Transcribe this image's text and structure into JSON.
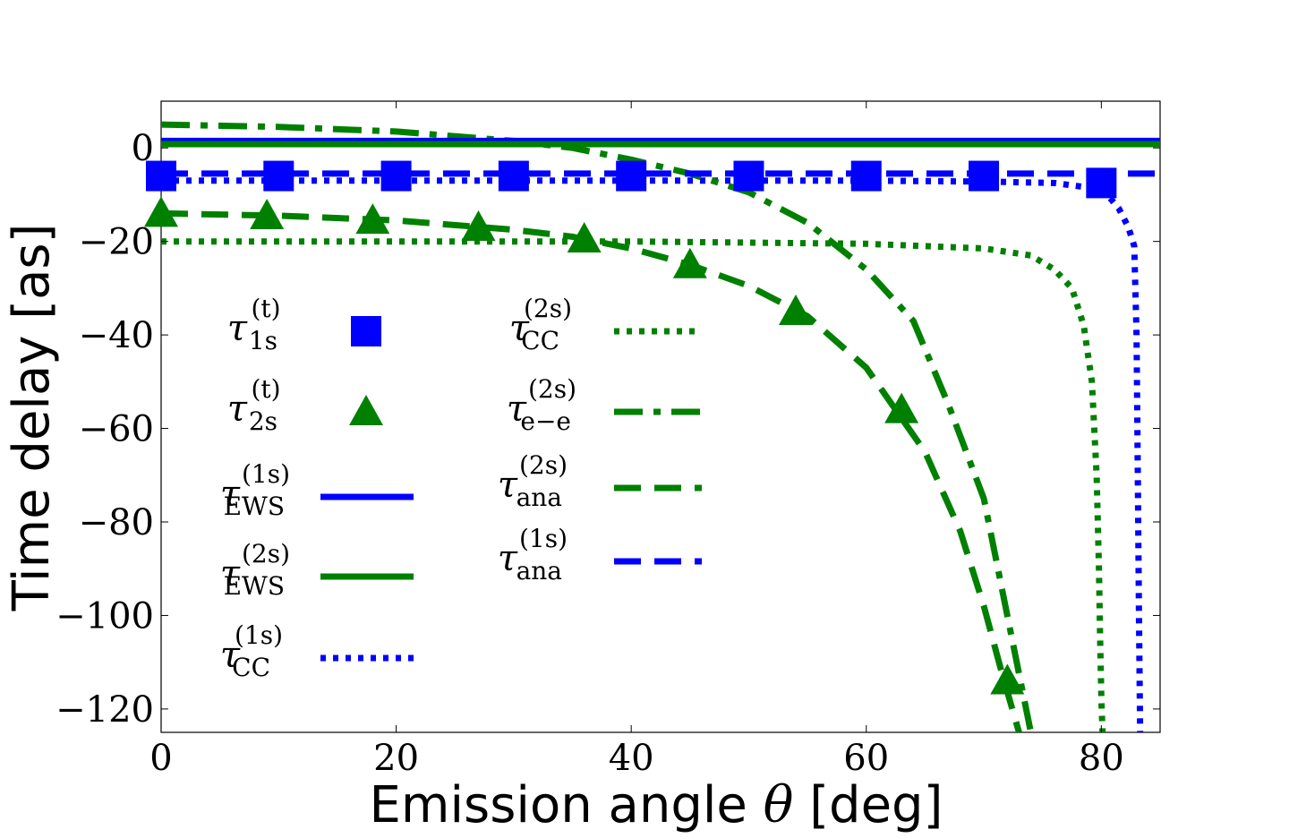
{
  "chart_data": {
    "type": "line",
    "xlabel": "Emission angle θ [deg]",
    "xlabel_parts": {
      "before": "Emission angle ",
      "symbol": "θ",
      "after": " [deg]"
    },
    "ylabel": "Time delay [as]",
    "xlim": [
      0,
      85
    ],
    "ylim": [
      -125,
      10
    ],
    "xticks": [
      0,
      20,
      40,
      60,
      80
    ],
    "xtick_labels": [
      "0",
      "20",
      "40",
      "60",
      "80"
    ],
    "yticks": [
      0,
      -20,
      -40,
      -60,
      -80,
      -100,
      -120
    ],
    "ytick_labels": [
      "0",
      "−20",
      "−40",
      "−60",
      "−80",
      "−100",
      "−120"
    ],
    "grid": false,
    "legend_position": "inside-left",
    "series": [
      {
        "name": "τ_1s^(t)",
        "legend_tau": "τ",
        "legend_sub": "1s",
        "legend_sup": "(t)",
        "style": "marker-square",
        "color": "#0000ff",
        "x": [
          0,
          10,
          20,
          30,
          40,
          50,
          60,
          70,
          80
        ],
        "y": [
          -6,
          -6,
          -6,
          -6,
          -6,
          -6,
          -6,
          -6,
          -7.5
        ]
      },
      {
        "name": "τ_2s^(t)",
        "legend_tau": "τ",
        "legend_sub": "2s",
        "legend_sup": "(t)",
        "style": "marker-triangle",
        "color": "#008000",
        "x": [
          0,
          9,
          18,
          27,
          36,
          45,
          54,
          63,
          72
        ],
        "y": [
          -14,
          -14.5,
          -15.5,
          -17,
          -19.5,
          -25,
          -35,
          -56,
          -114
        ]
      },
      {
        "name": "τ_EWS^(1s)",
        "legend_tau": "τ",
        "legend_sub": "EWS",
        "legend_sup": "(1s)",
        "style": "solid",
        "color": "#0000ff",
        "x": [
          0,
          85
        ],
        "y": [
          1.5,
          1.5
        ]
      },
      {
        "name": "τ_EWS^(2s)",
        "legend_tau": "τ",
        "legend_sub": "EWS",
        "legend_sup": "(2s)",
        "style": "solid",
        "color": "#008000",
        "x": [
          0,
          85
        ],
        "y": [
          0.8,
          0.8
        ]
      },
      {
        "name": "τ_CC^(1s)",
        "legend_tau": "τ",
        "legend_sub": "CC",
        "legend_sup": "(1s)",
        "style": "dotted",
        "color": "#0000ff",
        "x": [
          0,
          20,
          40,
          60,
          70,
          76,
          79,
          80.5,
          81.5,
          82.3,
          82.8,
          83,
          83.1,
          83.2,
          83.3
        ],
        "y": [
          -7,
          -7,
          -7,
          -7,
          -7.2,
          -7.5,
          -8.5,
          -10,
          -13,
          -17,
          -21,
          -40,
          -70,
          -100,
          -125
        ]
      },
      {
        "name": "τ_CC^(2s)",
        "legend_tau": "τ",
        "legend_sub": "CC",
        "legend_sup": "(2s)",
        "style": "dotted",
        "color": "#008000",
        "x": [
          0,
          20,
          40,
          60,
          70,
          74,
          76,
          77.5,
          78.5,
          79.2,
          79.6,
          79.8,
          79.9,
          80,
          80.1
        ],
        "y": [
          -20,
          -20,
          -20,
          -20.5,
          -21.5,
          -23,
          -26,
          -30,
          -38,
          -50,
          -70,
          -90,
          -105,
          -118,
          -125
        ]
      },
      {
        "name": "τ_e-e^(2s)",
        "legend_tau": "τ",
        "legend_sub": "e−e",
        "legend_sup": "(2s)",
        "style": "dashdot",
        "color": "#008000",
        "x": [
          0,
          10,
          20,
          30,
          35,
          40,
          45,
          50,
          55,
          60,
          64,
          67,
          70,
          72,
          74
        ],
        "y": [
          5,
          4.5,
          3.5,
          1.5,
          0,
          -2.5,
          -5.5,
          -9.5,
          -16,
          -26,
          -37,
          -55,
          -75,
          -100,
          -125
        ]
      },
      {
        "name": "τ_ana^(2s)",
        "legend_tau": "τ",
        "legend_sub": "ana",
        "legend_sup": "(2s)",
        "style": "dashed",
        "color": "#008000",
        "x": [
          0,
          10,
          20,
          30,
          35,
          40,
          45,
          50,
          55,
          60,
          65,
          68,
          70,
          71.5,
          73
        ],
        "y": [
          -14,
          -14.5,
          -15.5,
          -17.5,
          -19,
          -21.5,
          -25,
          -29.5,
          -36,
          -47,
          -65,
          -82,
          -98,
          -112,
          -125
        ]
      },
      {
        "name": "τ_ana^(1s)",
        "legend_tau": "τ",
        "legend_sub": "ana",
        "legend_sup": "(1s)",
        "style": "dashed",
        "color": "#0000ff",
        "x": [
          0,
          85
        ],
        "y": [
          -5.5,
          -5.5
        ]
      }
    ]
  }
}
